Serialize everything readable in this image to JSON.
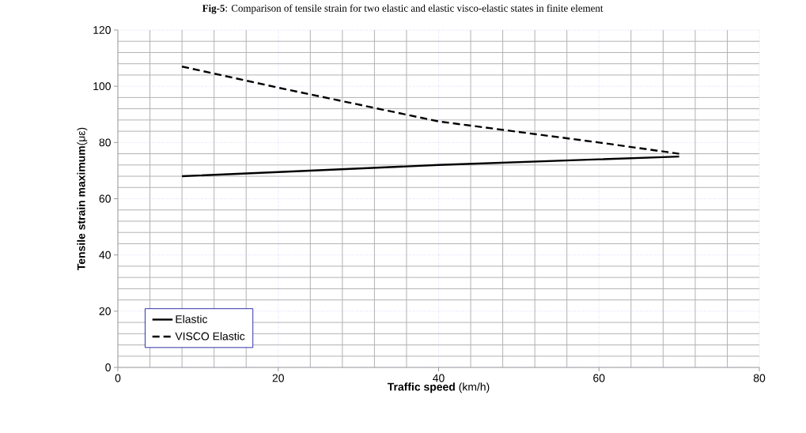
{
  "chart_data": {
    "type": "line",
    "title": "**Fig-5**: Comparison of tensile strain for two elastic and elastic visco-elastic states in finite element",
    "xlabel": "**Traffic speed** (km/h)",
    "ylabel": "**Tensile strain maximum**(με)",
    "x": [
      8,
      20,
      40,
      60,
      70
    ],
    "series": [
      {
        "name": "Elastic",
        "color": "#000000",
        "line_style": "solid",
        "values": [
          68,
          69.5,
          72,
          74,
          75
        ]
      },
      {
        "name": "VISCO Elastic",
        "color": "#000000",
        "line_style": "dashed",
        "values": [
          107,
          99.5,
          87.5,
          80,
          76
        ]
      }
    ],
    "xlim": [
      0,
      80
    ],
    "xticks": [
      0,
      20,
      40,
      60,
      80
    ],
    "ylim": [
      0,
      120
    ],
    "yticks": [
      0,
      20,
      40,
      60,
      80,
      100,
      120
    ],
    "grid": true,
    "legend": "bottom left",
    "marker": "none"
  }
}
